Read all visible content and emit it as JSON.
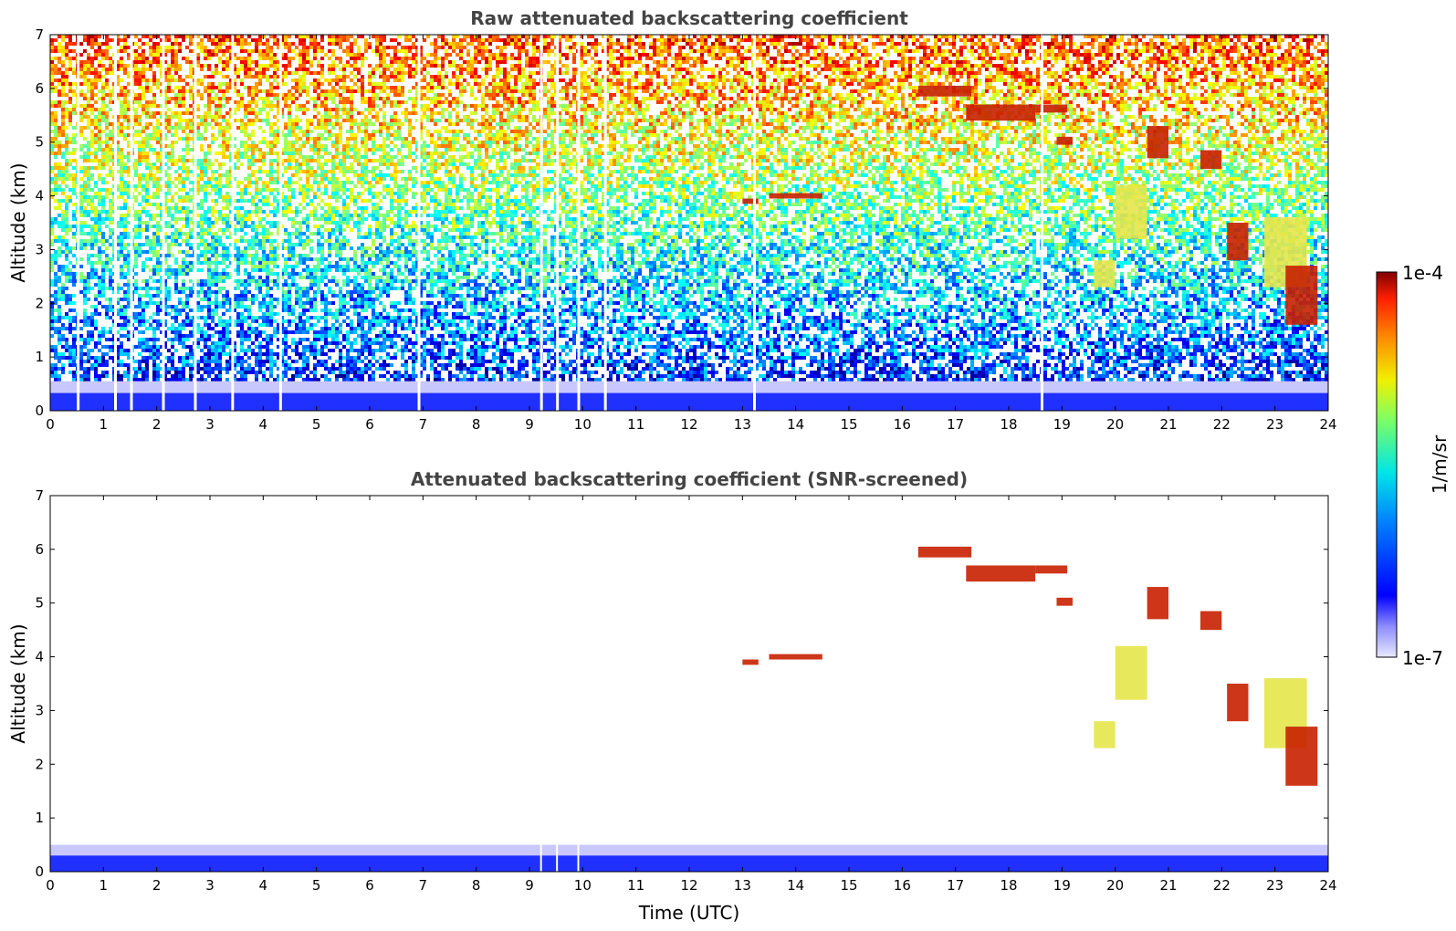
{
  "chart_data": [
    {
      "type": "heatmap",
      "title": "Raw attenuated backscattering coefficient",
      "xlabel": "",
      "ylabel": "Altitude (km)",
      "xlim": [
        0,
        24
      ],
      "ylim": [
        0,
        7
      ],
      "xticks": [
        "0",
        "1",
        "2",
        "3",
        "4",
        "5",
        "6",
        "7",
        "8",
        "9",
        "10",
        "11",
        "12",
        "13",
        "14",
        "15",
        "16",
        "17",
        "18",
        "19",
        "20",
        "21",
        "22",
        "23",
        "24"
      ],
      "yticks": [
        "0",
        "1",
        "2",
        "3",
        "4",
        "5",
        "6",
        "7"
      ],
      "cloud_layers": [
        {
          "x": [
            13.0,
            13.3
          ],
          "y": [
            3.85,
            3.95
          ],
          "level": "high"
        },
        {
          "x": [
            13.5,
            14.5
          ],
          "y": [
            3.95,
            4.05
          ],
          "level": "high"
        },
        {
          "x": [
            16.3,
            17.3
          ],
          "y": [
            5.85,
            6.05
          ],
          "level": "high"
        },
        {
          "x": [
            17.2,
            18.5
          ],
          "y": [
            5.4,
            5.7
          ],
          "level": "high"
        },
        {
          "x": [
            18.5,
            19.1
          ],
          "y": [
            5.55,
            5.7
          ],
          "level": "high"
        },
        {
          "x": [
            18.9,
            19.2
          ],
          "y": [
            4.95,
            5.1
          ],
          "level": "high"
        },
        {
          "x": [
            20.6,
            21.0
          ],
          "y": [
            4.7,
            5.3
          ],
          "level": "high"
        },
        {
          "x": [
            21.6,
            22.0
          ],
          "y": [
            4.5,
            4.85
          ],
          "level": "high"
        },
        {
          "x": [
            19.6,
            20.0
          ],
          "y": [
            2.3,
            2.8
          ],
          "level": "mid"
        },
        {
          "x": [
            20.0,
            20.6
          ],
          "y": [
            3.2,
            4.2
          ],
          "level": "mid"
        },
        {
          "x": [
            22.1,
            22.5
          ],
          "y": [
            2.8,
            3.5
          ],
          "level": "high"
        },
        {
          "x": [
            22.8,
            23.6
          ],
          "y": [
            2.3,
            3.6
          ],
          "level": "mid"
        },
        {
          "x": [
            23.2,
            23.8
          ],
          "y": [
            1.6,
            2.7
          ],
          "level": "high"
        }
      ],
      "background": "noise increasing with altitude; dense low-level aerosol below 0.5 km"
    },
    {
      "type": "heatmap",
      "title": "Attenuated backscattering coefficient (SNR-screened)",
      "xlabel": "Time (UTC)",
      "ylabel": "Altitude (km)",
      "xlim": [
        0,
        24
      ],
      "ylim": [
        0,
        7
      ],
      "xticks": [
        "0",
        "1",
        "2",
        "3",
        "4",
        "5",
        "6",
        "7",
        "8",
        "9",
        "10",
        "11",
        "12",
        "13",
        "14",
        "15",
        "16",
        "17",
        "18",
        "19",
        "20",
        "21",
        "22",
        "23",
        "24"
      ],
      "yticks": [
        "0",
        "1",
        "2",
        "3",
        "4",
        "5",
        "6",
        "7"
      ],
      "cloud_layers": [
        {
          "x": [
            13.0,
            13.3
          ],
          "y": [
            3.85,
            3.95
          ],
          "level": "high"
        },
        {
          "x": [
            13.5,
            14.5
          ],
          "y": [
            3.95,
            4.05
          ],
          "level": "high"
        },
        {
          "x": [
            16.3,
            17.3
          ],
          "y": [
            5.85,
            6.05
          ],
          "level": "high"
        },
        {
          "x": [
            17.2,
            18.5
          ],
          "y": [
            5.4,
            5.7
          ],
          "level": "high"
        },
        {
          "x": [
            18.5,
            19.1
          ],
          "y": [
            5.55,
            5.7
          ],
          "level": "high"
        },
        {
          "x": [
            18.9,
            19.2
          ],
          "y": [
            4.95,
            5.1
          ],
          "level": "high"
        },
        {
          "x": [
            20.6,
            21.0
          ],
          "y": [
            4.7,
            5.3
          ],
          "level": "high"
        },
        {
          "x": [
            21.6,
            22.0
          ],
          "y": [
            4.5,
            4.85
          ],
          "level": "high"
        },
        {
          "x": [
            19.6,
            20.0
          ],
          "y": [
            2.3,
            2.8
          ],
          "level": "mid"
        },
        {
          "x": [
            20.0,
            20.6
          ],
          "y": [
            3.2,
            4.2
          ],
          "level": "mid"
        },
        {
          "x": [
            22.1,
            22.5
          ],
          "y": [
            2.8,
            3.5
          ],
          "level": "high"
        },
        {
          "x": [
            22.8,
            23.6
          ],
          "y": [
            2.3,
            3.6
          ],
          "level": "mid"
        },
        {
          "x": [
            23.2,
            23.8
          ],
          "y": [
            1.6,
            2.7
          ],
          "level": "high"
        }
      ],
      "boundary_layer_top_km": 0.5,
      "background": "noise removed (white); boundary layer below ~0.5 km"
    }
  ],
  "colorbar": {
    "label": "1/m/sr",
    "max_label": "1e-4",
    "min_label": "1e-7",
    "scale": "log",
    "colormap": "jet"
  },
  "colors": {
    "title": "#444444",
    "low": "#0a14ff",
    "mid": "#e6e64b",
    "high": "#c82000"
  }
}
